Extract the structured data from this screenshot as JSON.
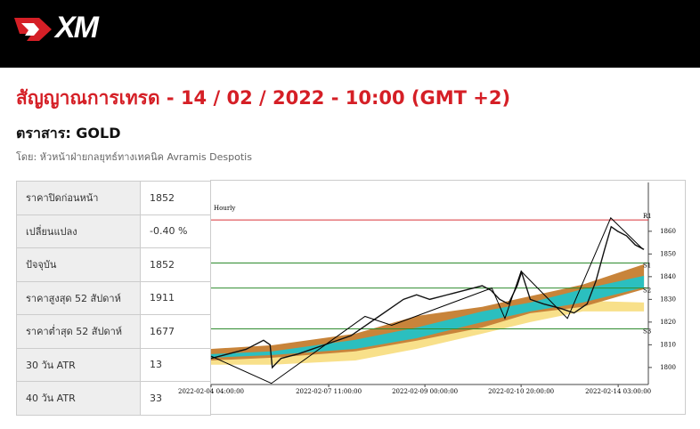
{
  "header": {
    "logo": "XM"
  },
  "title": "สัญญาณการเทรด - 14 / 02 / 2022 - 10:00 (GMT +2)",
  "instrument": "ตราสาร: GOLD",
  "author": "โดย: หัวหน้าฝ่ายกลยุทธ์ทางเทคนิค Avramis Despotis",
  "table": {
    "rows": [
      [
        "ราคาปิดก่อนหน้า",
        "1852"
      ],
      [
        "เปลี่ยนแปลง",
        "-0.40 %"
      ],
      [
        "ปัจจุบัน",
        "1852"
      ],
      [
        "ราคาสูงสุด 52 สัปดาห์",
        "1911"
      ],
      [
        "ราคาต่ำสุด 52 สัปดาห์",
        "1677"
      ],
      [
        "30 วัน ATR",
        "13"
      ],
      [
        "40 วัน ATR",
        "33"
      ]
    ]
  },
  "chart_data": {
    "type": "line",
    "title": "Hourly",
    "xlim": [
      0,
      100
    ],
    "xticks": [
      {
        "value": 0,
        "label": "2022-02-04 04:00:00"
      },
      {
        "value": 26.9,
        "label": "2022-02-07 11:00:00"
      },
      {
        "value": 48.9,
        "label": "2022-02-09 00:00:00"
      },
      {
        "value": 70.9,
        "label": "2022-02-10 20:00:00"
      },
      {
        "value": 93.1,
        "label": "2022-02-14 03:00:00"
      }
    ],
    "ylim": [
      1792.5,
      1881.5
    ],
    "yticks": [
      1800,
      1810,
      1820,
      1830,
      1840,
      1850,
      1860
    ],
    "levels": [
      {
        "name": "R1",
        "value": 1865,
        "color": "#d9343a"
      },
      {
        "name": "S1",
        "value": 1846,
        "color": "#2e8b2e"
      },
      {
        "name": "S2",
        "value": 1835,
        "color": "#2e8b2e"
      },
      {
        "name": "S3",
        "value": 1817,
        "color": "#2e8b2e"
      }
    ],
    "bands": [
      {
        "color": "#f8e08a",
        "x": [
          0,
          14,
          33,
          47,
          62,
          73,
          85,
          99
        ],
        "upper": [
          1805.1,
          1805.1,
          1807.1,
          1812.9,
          1820,
          1824.7,
          1829.4,
          1828.6
        ],
        "lower": [
          1801.2,
          1801.2,
          1803.1,
          1808.2,
          1814.9,
          1820,
          1824.7,
          1824.7
        ]
      },
      {
        "color": "#c8843a",
        "x": [
          0,
          14,
          33,
          47,
          62,
          73,
          85,
          99
        ],
        "upper": [
          1808.2,
          1809.8,
          1814.9,
          1822.7,
          1826.7,
          1831.4,
          1836.5,
          1845.5
        ],
        "lower": [
          1803.1,
          1804.3,
          1807.1,
          1811.8,
          1817.6,
          1823.9,
          1826.7,
          1834.5
        ]
      },
      {
        "color": "#2bbfbf",
        "x": [
          0,
          14,
          33,
          47,
          62,
          73,
          85,
          99
        ],
        "upper": [
          1805.9,
          1807.1,
          1812.2,
          1817.6,
          1824.7,
          1828.6,
          1834.5,
          1840.4
        ],
        "lower": [
          1804.3,
          1805.5,
          1808.2,
          1812.9,
          1820,
          1824.7,
          1828.6,
          1835.3
        ]
      }
    ],
    "series": [
      {
        "color": "#111111",
        "x": [
          0,
          4,
          8,
          12,
          13.5,
          14,
          16,
          20,
          23,
          26,
          29,
          32,
          35,
          38,
          41,
          44,
          47,
          50,
          54,
          58,
          62,
          64,
          66,
          68,
          70,
          71,
          73,
          76,
          80,
          83,
          86,
          88,
          90,
          91.5,
          93,
          95,
          97,
          99
        ],
        "values": [
          1804,
          1806,
          1808,
          1812,
          1810,
          1800,
          1804,
          1806,
          1808,
          1810,
          1812,
          1814,
          1818,
          1822,
          1826,
          1830,
          1832,
          1830,
          1832,
          1834,
          1836,
          1834,
          1830,
          1828,
          1836,
          1842,
          1830,
          1828,
          1826,
          1824,
          1828,
          1838,
          1852,
          1862,
          1860,
          1858,
          1854,
          1852
        ]
      },
      {
        "color": "#000000",
        "x": [
          0,
          13.8,
          35.2,
          41.3,
          64.2,
          67.2,
          70.9,
          81.5,
          91.4,
          98.8
        ],
        "values": [
          1805,
          1793,
          1822.5,
          1818.6,
          1835,
          1821.6,
          1842.4,
          1821.6,
          1865.9,
          1852
        ]
      }
    ]
  }
}
